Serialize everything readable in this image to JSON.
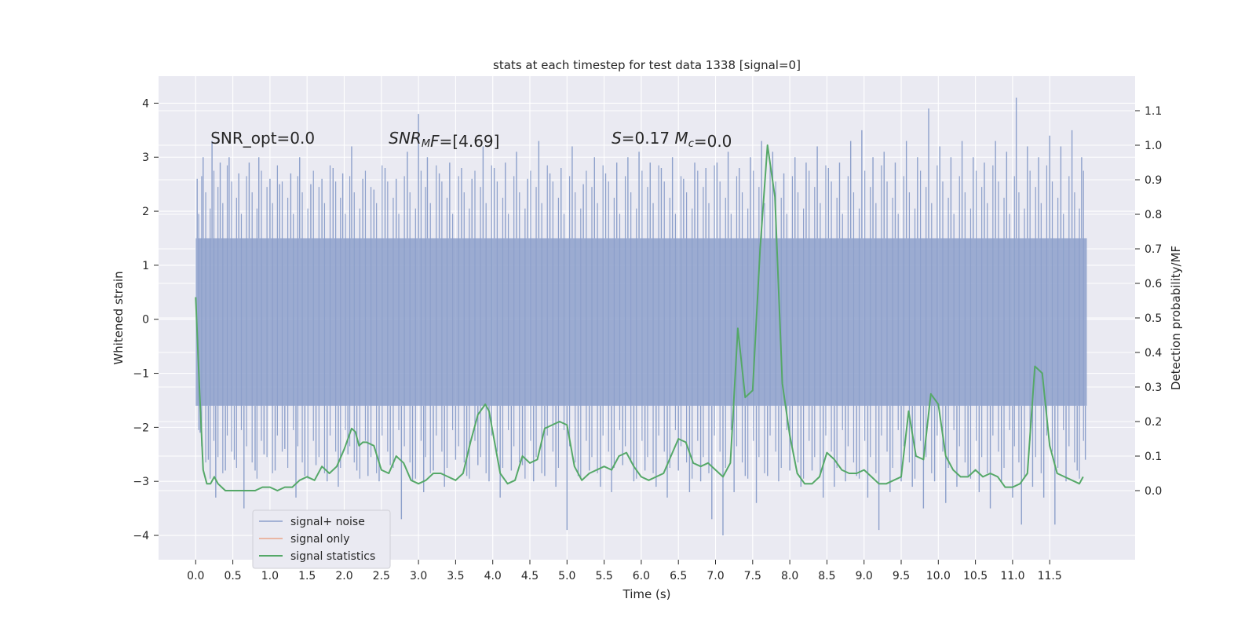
{
  "chart_data": {
    "type": "line",
    "title": "stats at each timestep for test data 1338 [signal=0]",
    "xlabel": "Time (s)",
    "ylabel_left": "Whitened strain",
    "ylabel_right": "Detection probability/MF",
    "xlim": [
      -0.5,
      12.65
    ],
    "ylim_left": [
      -4.45,
      4.5
    ],
    "ylim_right": [
      -0.2,
      1.2
    ],
    "x_ticks": [
      0.0,
      0.5,
      1.0,
      1.5,
      2.0,
      2.5,
      3.0,
      3.5,
      4.0,
      4.5,
      5.0,
      5.5,
      6.0,
      6.5,
      7.0,
      7.5,
      8.0,
      8.5,
      9.0,
      9.5,
      10.0,
      10.5,
      11.0,
      11.5
    ],
    "x_tick_labels": [
      "0.0",
      "0.5",
      "1.0",
      "1.5",
      "2.0",
      "2.5",
      "3.0",
      "3.5",
      "4.0",
      "4.5",
      "5.0",
      "5.5",
      "6.0",
      "6.5",
      "7.0",
      "7.5",
      "8.0",
      "8.5",
      "9.0",
      "9.5",
      "10.0",
      "10.5",
      "11.0",
      "11.5"
    ],
    "y_left_ticks": [
      -4,
      -3,
      -2,
      -1,
      0,
      1,
      2,
      3,
      4
    ],
    "y_left_tick_labels": [
      "−4",
      "−3",
      "−2",
      "−1",
      "0",
      "1",
      "2",
      "3",
      "4"
    ],
    "y_right_ticks": [
      0.0,
      0.1,
      0.2,
      0.3,
      0.4,
      0.5,
      0.6,
      0.7,
      0.8,
      0.9,
      1.0,
      1.1
    ],
    "y_right_tick_labels": [
      "0.0",
      "0.1",
      "0.2",
      "0.3",
      "0.4",
      "0.5",
      "0.6",
      "0.7",
      "0.8",
      "0.9",
      "1.0",
      "1.1"
    ],
    "grid": true,
    "legend_position": "lower-left",
    "annotations": [
      {
        "id": "snr-opt",
        "parts": [
          {
            "text": "SNR_opt=0.0",
            "italic": false
          }
        ],
        "x": 0.2,
        "y": 3.25
      },
      {
        "id": "snr-mf",
        "parts": [
          {
            "text": "SNR",
            "italic": true
          },
          {
            "text": "M",
            "italic": true,
            "sub": true
          },
          {
            "text": "F",
            "italic": true
          },
          {
            "text": "=[4.69]",
            "italic": false
          }
        ],
        "x": 2.6,
        "y": 3.25
      },
      {
        "id": "s-mc",
        "parts": [
          {
            "text": "S",
            "italic": true
          },
          {
            "text": "=0.17   ",
            "italic": false
          },
          {
            "text": "M",
            "italic": true
          },
          {
            "text": "c",
            "italic": true,
            "sub": true
          },
          {
            "text": "=0.0",
            "italic": false
          }
        ],
        "x": 5.6,
        "y": 3.25
      }
    ],
    "series": [
      {
        "name": "signal+ noise",
        "color": "#8da0cb",
        "axis": "left",
        "x_range": [
          0.0,
          12.0
        ],
        "envelope_upper": 1.5,
        "envelope_lower": -1.6,
        "spikes": [
          [
            0.02,
            2.6
          ],
          [
            0.06,
            -2.1
          ],
          [
            0.1,
            3.0
          ],
          [
            0.17,
            -2.6
          ],
          [
            0.22,
            3.3
          ],
          [
            0.27,
            -3.3
          ],
          [
            0.33,
            2.9
          ],
          [
            0.4,
            -2.8
          ],
          [
            0.45,
            3.0
          ],
          [
            0.52,
            -2.6
          ],
          [
            0.58,
            2.7
          ],
          [
            0.65,
            -3.5
          ],
          [
            0.72,
            2.9
          ],
          [
            0.8,
            -2.8
          ],
          [
            0.85,
            3.0
          ],
          [
            0.92,
            -2.5
          ],
          [
            1.0,
            2.6
          ],
          [
            1.07,
            -2.8
          ],
          [
            1.13,
            2.5
          ],
          [
            1.2,
            -2.4
          ],
          [
            1.28,
            2.7
          ],
          [
            1.35,
            -3.3
          ],
          [
            1.4,
            3.0
          ],
          [
            1.47,
            -2.9
          ],
          [
            1.55,
            2.5
          ],
          [
            1.62,
            -2.7
          ],
          [
            1.7,
            2.6
          ],
          [
            1.77,
            -3.0
          ],
          [
            1.85,
            2.8
          ],
          [
            1.92,
            -3.1
          ],
          [
            1.98,
            2.7
          ],
          [
            2.05,
            -2.5
          ],
          [
            2.1,
            3.2
          ],
          [
            2.17,
            -2.8
          ],
          [
            2.25,
            2.6
          ],
          [
            2.32,
            -2.9
          ],
          [
            2.4,
            2.4
          ],
          [
            2.47,
            -3.0
          ],
          [
            2.55,
            2.8
          ],
          [
            2.62,
            -2.7
          ],
          [
            2.7,
            2.6
          ],
          [
            2.77,
            -3.7
          ],
          [
            2.85,
            3.1
          ],
          [
            2.92,
            -3.0
          ],
          [
            3.0,
            3.8
          ],
          [
            3.07,
            -3.2
          ],
          [
            3.12,
            3.0
          ],
          [
            3.2,
            -2.8
          ],
          [
            3.28,
            2.7
          ],
          [
            3.35,
            -3.1
          ],
          [
            3.42,
            2.9
          ],
          [
            3.5,
            -2.6
          ],
          [
            3.58,
            2.8
          ],
          [
            3.65,
            -2.9
          ],
          [
            3.72,
            2.6
          ],
          [
            3.8,
            -2.7
          ],
          [
            3.87,
            3.2
          ],
          [
            3.95,
            -3.0
          ],
          [
            4.02,
            2.8
          ],
          [
            4.1,
            -3.3
          ],
          [
            4.17,
            2.9
          ],
          [
            4.25,
            -2.8
          ],
          [
            4.32,
            3.1
          ],
          [
            4.4,
            -2.7
          ],
          [
            4.47,
            2.6
          ],
          [
            4.55,
            -3.0
          ],
          [
            4.62,
            3.3
          ],
          [
            4.7,
            -2.9
          ],
          [
            4.77,
            2.7
          ],
          [
            4.85,
            -3.1
          ],
          [
            4.92,
            2.8
          ],
          [
            5.0,
            -3.9
          ],
          [
            5.07,
            3.2
          ],
          [
            5.15,
            -2.9
          ],
          [
            5.22,
            2.5
          ],
          [
            5.3,
            -2.8
          ],
          [
            5.37,
            3.0
          ],
          [
            5.45,
            -3.1
          ],
          [
            5.52,
            2.7
          ],
          [
            5.6,
            -3.2
          ],
          [
            5.67,
            2.9
          ],
          [
            5.75,
            -2.7
          ],
          [
            5.82,
            3.0
          ],
          [
            5.9,
            -3.0
          ],
          [
            5.97,
            3.1
          ],
          [
            6.05,
            -2.8
          ],
          [
            6.12,
            2.9
          ],
          [
            6.2,
            -3.1
          ],
          [
            6.27,
            2.8
          ],
          [
            6.35,
            -3.3
          ],
          [
            6.42,
            3.0
          ],
          [
            6.5,
            -2.8
          ],
          [
            6.57,
            2.6
          ],
          [
            6.65,
            -3.2
          ],
          [
            6.72,
            2.9
          ],
          [
            6.8,
            -3.0
          ],
          [
            6.87,
            2.8
          ],
          [
            6.95,
            -3.7
          ],
          [
            7.02,
            2.9
          ],
          [
            7.1,
            -4.0
          ],
          [
            7.17,
            3.1
          ],
          [
            7.25,
            -3.2
          ],
          [
            7.32,
            2.8
          ],
          [
            7.4,
            -2.9
          ],
          [
            7.47,
            3.0
          ],
          [
            7.55,
            -3.4
          ],
          [
            7.62,
            3.3
          ],
          [
            7.7,
            -2.9
          ],
          [
            7.77,
            3.1
          ],
          [
            7.85,
            -3.0
          ],
          [
            7.92,
            2.7
          ],
          [
            8.0,
            -2.8
          ],
          [
            8.07,
            3.0
          ],
          [
            8.15,
            -3.1
          ],
          [
            8.22,
            2.9
          ],
          [
            8.3,
            -2.8
          ],
          [
            8.37,
            3.2
          ],
          [
            8.45,
            -3.3
          ],
          [
            8.52,
            2.8
          ],
          [
            8.6,
            -3.1
          ],
          [
            8.67,
            2.9
          ],
          [
            8.75,
            -3.0
          ],
          [
            8.82,
            3.3
          ],
          [
            8.9,
            -2.9
          ],
          [
            8.97,
            3.5
          ],
          [
            9.05,
            -3.3
          ],
          [
            9.12,
            3.0
          ],
          [
            9.2,
            -3.9
          ],
          [
            9.27,
            3.1
          ],
          [
            9.35,
            -3.2
          ],
          [
            9.42,
            2.9
          ],
          [
            9.5,
            -3.0
          ],
          [
            9.57,
            3.3
          ],
          [
            9.65,
            -3.1
          ],
          [
            9.72,
            3.0
          ],
          [
            9.8,
            -3.5
          ],
          [
            9.87,
            3.9
          ],
          [
            9.95,
            -3.0
          ],
          [
            10.02,
            3.2
          ],
          [
            10.1,
            -3.4
          ],
          [
            10.17,
            3.0
          ],
          [
            10.25,
            -3.1
          ],
          [
            10.32,
            3.3
          ],
          [
            10.4,
            -2.9
          ],
          [
            10.47,
            3.0
          ],
          [
            10.55,
            -3.2
          ],
          [
            10.62,
            2.9
          ],
          [
            10.7,
            -3.5
          ],
          [
            10.77,
            3.3
          ],
          [
            10.85,
            -3.0
          ],
          [
            10.92,
            3.1
          ],
          [
            11.0,
            -3.3
          ],
          [
            11.05,
            4.1
          ],
          [
            11.12,
            -3.8
          ],
          [
            11.2,
            3.2
          ],
          [
            11.27,
            -3.1
          ],
          [
            11.35,
            3.0
          ],
          [
            11.42,
            -3.3
          ],
          [
            11.5,
            3.4
          ],
          [
            11.57,
            -3.8
          ],
          [
            11.65,
            3.2
          ],
          [
            11.72,
            -3.0
          ],
          [
            11.8,
            3.5
          ],
          [
            11.87,
            -2.8
          ],
          [
            11.93,
            3.0
          ],
          [
            11.98,
            -2.6
          ]
        ]
      },
      {
        "name": "signal only",
        "color": "#e9a589",
        "axis": "left",
        "x": [],
        "y": []
      },
      {
        "name": "signal statistics",
        "color": "#55a868",
        "axis": "right",
        "x": [
          0.0,
          0.05,
          0.1,
          0.15,
          0.2,
          0.25,
          0.3,
          0.35,
          0.4,
          0.5,
          0.6,
          0.7,
          0.8,
          0.9,
          1.0,
          1.1,
          1.2,
          1.3,
          1.4,
          1.5,
          1.6,
          1.7,
          1.8,
          1.9,
          2.0,
          2.1,
          2.15,
          2.2,
          2.25,
          2.3,
          2.4,
          2.5,
          2.6,
          2.7,
          2.8,
          2.9,
          3.0,
          3.1,
          3.2,
          3.3,
          3.4,
          3.5,
          3.6,
          3.7,
          3.8,
          3.9,
          3.95,
          4.0,
          4.1,
          4.2,
          4.3,
          4.4,
          4.5,
          4.6,
          4.7,
          4.8,
          4.9,
          5.0,
          5.1,
          5.2,
          5.3,
          5.4,
          5.5,
          5.6,
          5.7,
          5.8,
          5.9,
          6.0,
          6.1,
          6.2,
          6.3,
          6.4,
          6.5,
          6.6,
          6.7,
          6.8,
          6.9,
          7.0,
          7.1,
          7.2,
          7.3,
          7.4,
          7.5,
          7.6,
          7.7,
          7.8,
          7.9,
          8.0,
          8.1,
          8.2,
          8.3,
          8.4,
          8.5,
          8.6,
          8.7,
          8.8,
          8.9,
          9.0,
          9.1,
          9.2,
          9.3,
          9.4,
          9.5,
          9.6,
          9.7,
          9.8,
          9.9,
          10.0,
          10.1,
          10.2,
          10.3,
          10.4,
          10.5,
          10.6,
          10.7,
          10.8,
          10.9,
          11.0,
          11.1,
          11.2,
          11.3,
          11.4,
          11.5,
          11.6,
          11.7,
          11.8,
          11.9,
          11.95
        ],
        "y": [
          0.56,
          0.3,
          0.06,
          0.02,
          0.02,
          0.04,
          0.02,
          0.01,
          0.0,
          0.0,
          0.0,
          0.0,
          0.0,
          0.01,
          0.01,
          0.0,
          0.01,
          0.01,
          0.03,
          0.04,
          0.03,
          0.07,
          0.05,
          0.07,
          0.12,
          0.18,
          0.17,
          0.13,
          0.14,
          0.14,
          0.13,
          0.06,
          0.05,
          0.1,
          0.08,
          0.03,
          0.02,
          0.03,
          0.05,
          0.05,
          0.04,
          0.03,
          0.05,
          0.14,
          0.22,
          0.25,
          0.23,
          0.17,
          0.05,
          0.02,
          0.03,
          0.1,
          0.08,
          0.09,
          0.18,
          0.19,
          0.2,
          0.19,
          0.07,
          0.03,
          0.05,
          0.06,
          0.07,
          0.06,
          0.1,
          0.11,
          0.07,
          0.04,
          0.03,
          0.04,
          0.05,
          0.1,
          0.15,
          0.14,
          0.08,
          0.07,
          0.08,
          0.06,
          0.04,
          0.08,
          0.47,
          0.27,
          0.29,
          0.7,
          1.0,
          0.85,
          0.31,
          0.16,
          0.05,
          0.02,
          0.02,
          0.04,
          0.11,
          0.09,
          0.06,
          0.05,
          0.05,
          0.06,
          0.04,
          0.02,
          0.02,
          0.03,
          0.04,
          0.23,
          0.1,
          0.09,
          0.28,
          0.25,
          0.1,
          0.06,
          0.04,
          0.04,
          0.06,
          0.04,
          0.05,
          0.04,
          0.01,
          0.01,
          0.02,
          0.05,
          0.36,
          0.34,
          0.13,
          0.05,
          0.04,
          0.03,
          0.02,
          0.04
        ]
      }
    ]
  }
}
